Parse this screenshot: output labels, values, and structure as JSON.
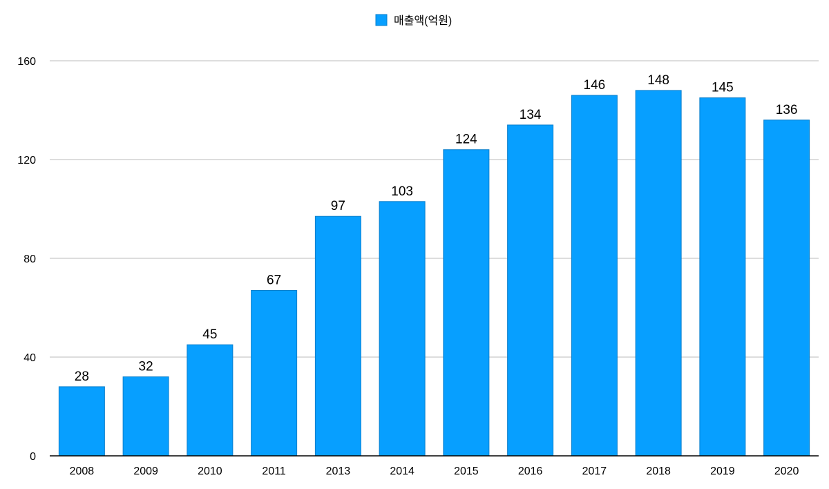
{
  "chart_data": {
    "type": "bar",
    "categories": [
      "2008",
      "2009",
      "2010",
      "2011",
      "2013",
      "2014",
      "2015",
      "2016",
      "2017",
      "2018",
      "2019",
      "2020"
    ],
    "series": [
      {
        "name": "매출액(억원)",
        "values": [
          28,
          32,
          45,
          67,
          97,
          103,
          124,
          134,
          146,
          148,
          145,
          136
        ]
      }
    ],
    "ylim": [
      0,
      160
    ],
    "yticks": [
      "0",
      "40",
      "80",
      "120",
      "160"
    ],
    "grid": true,
    "legend": "top-center",
    "colors": {
      "bar": "#079FFF",
      "bar_edge": "#0A7FCC",
      "grid": "#BBBBBB",
      "axis": "#000000"
    }
  }
}
